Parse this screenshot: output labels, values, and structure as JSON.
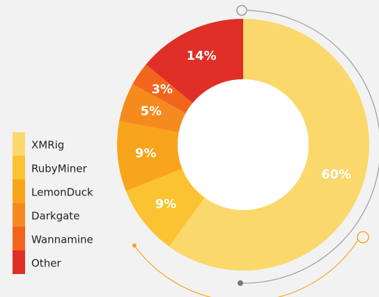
{
  "chart_data": {
    "type": "donut",
    "categories": [
      "XMRig",
      "RubyMiner",
      "LemonDuck",
      "Darkgate",
      "Wannamine",
      "Other"
    ],
    "values": [
      60,
      9,
      9,
      5,
      3,
      14
    ],
    "value_labels": [
      "60%",
      "9%",
      "9%",
      "5%",
      "3%",
      "14%"
    ],
    "colors": [
      "#fbd86b",
      "#fbc331",
      "#f9a51c",
      "#f68a1f",
      "#f3651c",
      "#df2f27"
    ]
  }
}
